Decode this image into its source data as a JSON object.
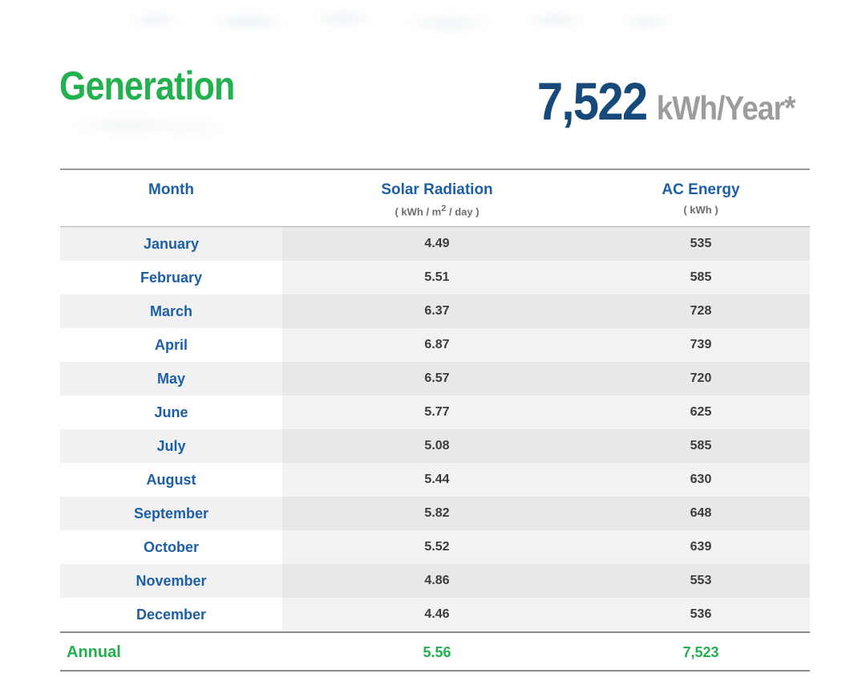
{
  "page": {
    "title": "Generation",
    "headline": {
      "value": "7,522",
      "unit": "kWh/Year*"
    }
  },
  "table": {
    "columns": {
      "month": "Month",
      "radiation": "Solar Radiation",
      "radiation_unit_prefix": "( kWh / m",
      "radiation_unit_sup": "2",
      "radiation_unit_suffix": " / day )",
      "energy": "AC Energy",
      "energy_unit": "( kWh )"
    },
    "rows": [
      {
        "month": "January",
        "radiation": "4.49",
        "energy": "535"
      },
      {
        "month": "February",
        "radiation": "5.51",
        "energy": "585"
      },
      {
        "month": "March",
        "radiation": "6.37",
        "energy": "728"
      },
      {
        "month": "April",
        "radiation": "6.87",
        "energy": "739"
      },
      {
        "month": "May",
        "radiation": "6.57",
        "energy": "720"
      },
      {
        "month": "June",
        "radiation": "5.77",
        "energy": "625"
      },
      {
        "month": "July",
        "radiation": "5.08",
        "energy": "585"
      },
      {
        "month": "August",
        "radiation": "5.44",
        "energy": "630"
      },
      {
        "month": "September",
        "radiation": "5.82",
        "energy": "648"
      },
      {
        "month": "October",
        "radiation": "5.52",
        "energy": "639"
      },
      {
        "month": "November",
        "radiation": "4.86",
        "energy": "553"
      },
      {
        "month": "December",
        "radiation": "4.46",
        "energy": "536"
      }
    ],
    "annual": {
      "label": "Annual",
      "radiation": "5.56",
      "energy": "7,523"
    }
  },
  "colors": {
    "accent_green": "#23b150",
    "navy": "#17497b",
    "headline_gray": "#9c9c9c",
    "header_blue": "#1d5fa6",
    "value_text": "#3b3b3b",
    "stripe_dark": "#e8e8e8",
    "stripe_light": "#f2f2f2"
  }
}
